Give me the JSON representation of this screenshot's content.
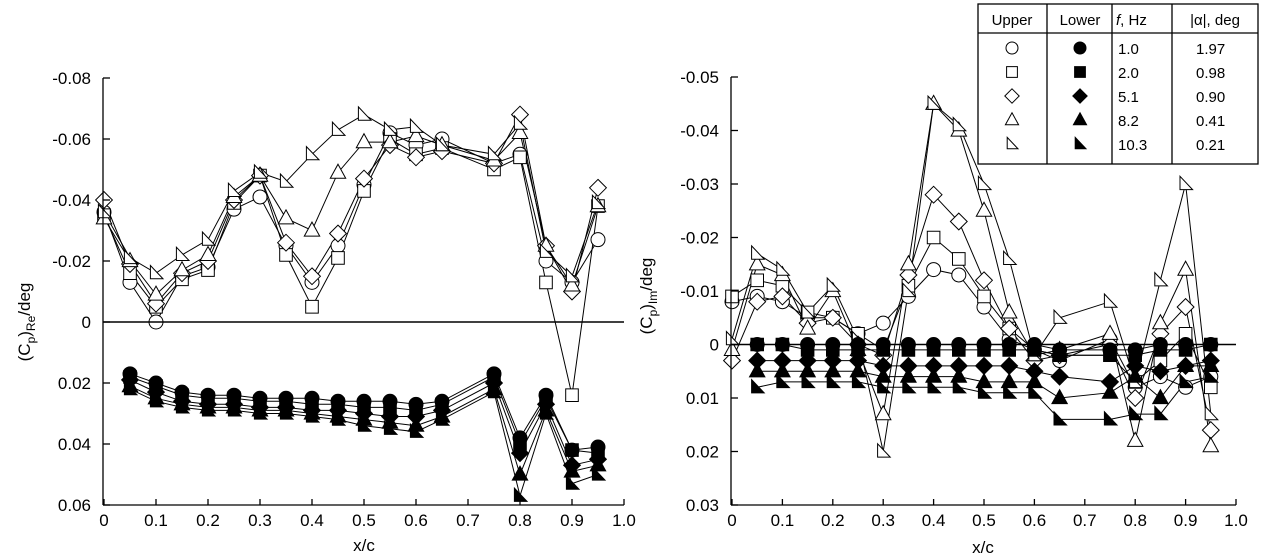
{
  "chart_data": [
    {
      "type": "scatter",
      "xlabel": "x/c",
      "ylabel": "(C",
      "ylabel_sub1": "p",
      "ylabel_mid": ")",
      "ylabel_sub2": "Re",
      "ylabel_tail": "/deg",
      "xlim": [
        0,
        1.0
      ],
      "ylim": [
        0.06,
        -0.08
      ],
      "y_inverted": true,
      "xticks": [
        0,
        0.1,
        0.2,
        0.3,
        0.4,
        0.5,
        0.6,
        0.7,
        0.8,
        0.9,
        1.0
      ],
      "xtick_labels": [
        "0",
        "0.1",
        "0.2",
        "0.3",
        "0.4",
        "0.5",
        "0.6",
        "0.7",
        "0.8",
        "0.9",
        "1.0"
      ],
      "yticks": [
        -0.08,
        -0.06,
        -0.04,
        -0.02,
        0,
        0.02,
        0.04,
        0.06
      ],
      "ytick_labels": [
        "-0.08",
        "-0.06",
        "-0.04",
        "-0.02",
        "0",
        "0.02",
        "0.04",
        "0.06"
      ],
      "zero_line": true,
      "series": [
        {
          "surface": "upper",
          "marker": "circle",
          "x": [
            0,
            0.05,
            0.1,
            0.15,
            0.2,
            0.25,
            0.3,
            0.35,
            0.4,
            0.45,
            0.5,
            0.55,
            0.6,
            0.65,
            0.75,
            0.8,
            0.85,
            0.9,
            0.95
          ],
          "y": [
            -0.036,
            -0.013,
            0.0,
            -0.015,
            -0.018,
            -0.037,
            -0.041,
            -0.025,
            -0.013,
            -0.025,
            -0.045,
            -0.062,
            -0.058,
            -0.06,
            -0.052,
            -0.055,
            -0.02,
            -0.013,
            -0.027
          ]
        },
        {
          "surface": "upper",
          "marker": "square",
          "x": [
            0,
            0.05,
            0.1,
            0.15,
            0.2,
            0.25,
            0.3,
            0.35,
            0.4,
            0.45,
            0.5,
            0.55,
            0.6,
            0.65,
            0.75,
            0.8,
            0.85,
            0.9,
            0.95
          ],
          "y": [
            -0.035,
            -0.016,
            -0.005,
            -0.014,
            -0.017,
            -0.039,
            -0.048,
            -0.022,
            -0.005,
            -0.021,
            -0.043,
            -0.06,
            -0.055,
            -0.057,
            -0.05,
            -0.054,
            -0.013,
            0.024,
            -0.038
          ]
        },
        {
          "surface": "upper",
          "marker": "diamond",
          "x": [
            0,
            0.05,
            0.1,
            0.15,
            0.2,
            0.25,
            0.3,
            0.35,
            0.4,
            0.45,
            0.5,
            0.55,
            0.6,
            0.65,
            0.75,
            0.8,
            0.85,
            0.9,
            0.95
          ],
          "y": [
            -0.04,
            -0.019,
            -0.006,
            -0.016,
            -0.02,
            -0.04,
            -0.048,
            -0.026,
            -0.015,
            -0.029,
            -0.047,
            -0.058,
            -0.054,
            -0.056,
            -0.052,
            -0.068,
            -0.025,
            -0.01,
            -0.044
          ]
        },
        {
          "surface": "upper",
          "marker": "triangle-up",
          "x": [
            0,
            0.05,
            0.1,
            0.15,
            0.2,
            0.25,
            0.3,
            0.35,
            0.4,
            0.45,
            0.5,
            0.55,
            0.6,
            0.65,
            0.75,
            0.8,
            0.85,
            0.9,
            0.95
          ],
          "y": [
            -0.034,
            -0.02,
            -0.009,
            -0.017,
            -0.022,
            -0.041,
            -0.048,
            -0.034,
            -0.03,
            -0.049,
            -0.059,
            -0.059,
            -0.061,
            -0.058,
            -0.053,
            -0.062,
            -0.025,
            -0.012,
            -0.038
          ]
        },
        {
          "surface": "upper",
          "marker": "triangle-right",
          "x": [
            0,
            0.05,
            0.1,
            0.15,
            0.2,
            0.25,
            0.3,
            0.35,
            0.4,
            0.45,
            0.5,
            0.55,
            0.6,
            0.65,
            0.75,
            0.8,
            0.85,
            0.9,
            0.95
          ],
          "y": [
            -0.036,
            -0.021,
            -0.016,
            -0.022,
            -0.027,
            -0.043,
            -0.049,
            -0.046,
            -0.055,
            -0.063,
            -0.068,
            -0.063,
            -0.064,
            -0.058,
            -0.055,
            -0.065,
            -0.023,
            -0.015,
            -0.039
          ]
        },
        {
          "surface": "lower",
          "marker": "circle",
          "x": [
            0.05,
            0.1,
            0.15,
            0.2,
            0.25,
            0.3,
            0.35,
            0.4,
            0.45,
            0.5,
            0.55,
            0.6,
            0.65,
            0.75,
            0.8,
            0.85,
            0.9,
            0.95
          ],
          "y": [
            0.017,
            0.02,
            0.023,
            0.024,
            0.024,
            0.025,
            0.025,
            0.025,
            0.026,
            0.026,
            0.026,
            0.027,
            0.026,
            0.017,
            0.038,
            0.024,
            0.042,
            0.041
          ]
        },
        {
          "surface": "lower",
          "marker": "square",
          "x": [
            0.05,
            0.1,
            0.15,
            0.2,
            0.25,
            0.3,
            0.35,
            0.4,
            0.45,
            0.5,
            0.55,
            0.6,
            0.65,
            0.75,
            0.8,
            0.85,
            0.9,
            0.95
          ],
          "y": [
            0.018,
            0.021,
            0.024,
            0.025,
            0.025,
            0.026,
            0.026,
            0.027,
            0.027,
            0.028,
            0.028,
            0.029,
            0.027,
            0.018,
            0.04,
            0.025,
            0.042,
            0.043
          ]
        },
        {
          "surface": "lower",
          "marker": "diamond",
          "x": [
            0.05,
            0.1,
            0.15,
            0.2,
            0.25,
            0.3,
            0.35,
            0.4,
            0.45,
            0.5,
            0.55,
            0.6,
            0.65,
            0.75,
            0.8,
            0.85,
            0.9,
            0.95
          ],
          "y": [
            0.019,
            0.023,
            0.026,
            0.027,
            0.027,
            0.028,
            0.028,
            0.029,
            0.029,
            0.03,
            0.031,
            0.031,
            0.029,
            0.02,
            0.043,
            0.027,
            0.047,
            0.045
          ]
        },
        {
          "surface": "lower",
          "marker": "triangle-up",
          "x": [
            0.05,
            0.1,
            0.15,
            0.2,
            0.25,
            0.3,
            0.35,
            0.4,
            0.45,
            0.5,
            0.55,
            0.6,
            0.65,
            0.75,
            0.8,
            0.85,
            0.9,
            0.95
          ],
          "y": [
            0.021,
            0.025,
            0.027,
            0.028,
            0.028,
            0.029,
            0.029,
            0.03,
            0.031,
            0.032,
            0.033,
            0.034,
            0.031,
            0.022,
            0.05,
            0.029,
            0.049,
            0.047
          ]
        },
        {
          "surface": "lower",
          "marker": "triangle-right",
          "x": [
            0.05,
            0.1,
            0.15,
            0.2,
            0.25,
            0.3,
            0.35,
            0.4,
            0.45,
            0.5,
            0.55,
            0.6,
            0.65,
            0.75,
            0.8,
            0.85,
            0.9,
            0.95
          ],
          "y": [
            0.022,
            0.026,
            0.028,
            0.029,
            0.029,
            0.03,
            0.03,
            0.031,
            0.032,
            0.034,
            0.035,
            0.036,
            0.032,
            0.023,
            0.057,
            0.03,
            0.053,
            0.05
          ]
        }
      ]
    },
    {
      "type": "scatter",
      "xlabel": "x/c",
      "ylabel": "(C",
      "ylabel_sub1": "p",
      "ylabel_mid": ")",
      "ylabel_sub2": "Im",
      "ylabel_tail": "/deg",
      "xlim": [
        0,
        1.0
      ],
      "ylim": [
        0.03,
        -0.05
      ],
      "y_inverted": true,
      "xticks": [
        0,
        0.1,
        0.2,
        0.3,
        0.4,
        0.5,
        0.6,
        0.7,
        0.8,
        0.9,
        1.0
      ],
      "xtick_labels": [
        "0",
        "0.1",
        "0.2",
        "0.3",
        "0.4",
        "0.5",
        "0.6",
        "0.7",
        "0.8",
        "0.9",
        "1.0"
      ],
      "yticks": [
        -0.05,
        -0.04,
        -0.03,
        -0.02,
        -0.01,
        0,
        0.01,
        0.02,
        0.03
      ],
      "ytick_labels": [
        "-0.05",
        "-0.04",
        "-0.03",
        "-0.02",
        "-0.01",
        "0",
        "0.01",
        "0.02",
        "0.03"
      ],
      "zero_line": true,
      "series": [
        {
          "surface": "upper",
          "marker": "circle",
          "x": [
            0,
            0.05,
            0.1,
            0.15,
            0.2,
            0.25,
            0.3,
            0.35,
            0.4,
            0.45,
            0.5,
            0.55,
            0.6,
            0.65,
            0.75,
            0.8,
            0.85,
            0.9,
            0.95
          ],
          "y": [
            -0.008,
            -0.009,
            -0.008,
            -0.005,
            -0.005,
            -0.002,
            -0.004,
            -0.009,
            -0.014,
            -0.013,
            -0.007,
            -0.001,
            0.001,
            0.003,
            -0.001,
            0.008,
            0.006,
            0.008,
            0.006
          ]
        },
        {
          "surface": "upper",
          "marker": "square",
          "x": [
            0,
            0.05,
            0.1,
            0.15,
            0.2,
            0.25,
            0.3,
            0.35,
            0.4,
            0.45,
            0.5,
            0.55,
            0.6,
            0.65,
            0.75,
            0.8,
            0.85,
            0.9,
            0.95
          ],
          "y": [
            -0.009,
            -0.012,
            -0.011,
            -0.006,
            -0.005,
            -0.002,
            0.001,
            -0.011,
            -0.02,
            -0.016,
            -0.009,
            -0.003,
            0.001,
            0.002,
            0.002,
            0.007,
            0.003,
            -0.002,
            0.008
          ]
        },
        {
          "surface": "upper",
          "marker": "diamond",
          "x": [
            0,
            0.05,
            0.1,
            0.15,
            0.2,
            0.25,
            0.3,
            0.35,
            0.4,
            0.45,
            0.5,
            0.55,
            0.6,
            0.65,
            0.75,
            0.8,
            0.85,
            0.9,
            0.95
          ],
          "y": [
            0.003,
            -0.008,
            -0.009,
            -0.004,
            -0.005,
            0.0,
            0.002,
            -0.013,
            -0.028,
            -0.023,
            -0.012,
            -0.003,
            0.003,
            0.002,
            0.0,
            0.01,
            -0.002,
            -0.007,
            0.016
          ]
        },
        {
          "surface": "upper",
          "marker": "triangle-up",
          "x": [
            0,
            0.05,
            0.1,
            0.15,
            0.2,
            0.25,
            0.3,
            0.35,
            0.4,
            0.45,
            0.5,
            0.55,
            0.6,
            0.65,
            0.75,
            0.8,
            0.85,
            0.9,
            0.95
          ],
          "y": [
            0.001,
            -0.015,
            -0.013,
            -0.003,
            -0.01,
            0.001,
            0.013,
            -0.015,
            -0.045,
            -0.04,
            -0.025,
            -0.006,
            0.002,
            0.001,
            -0.002,
            0.018,
            -0.004,
            -0.014,
            0.019
          ]
        },
        {
          "surface": "upper",
          "marker": "triangle-right",
          "x": [
            0,
            0.05,
            0.1,
            0.15,
            0.2,
            0.25,
            0.3,
            0.35,
            0.4,
            0.45,
            0.5,
            0.55,
            0.6,
            0.65,
            0.75,
            0.8,
            0.85,
            0.9,
            0.95
          ],
          "y": [
            -0.001,
            -0.017,
            -0.014,
            -0.006,
            -0.011,
            -0.001,
            0.02,
            -0.01,
            -0.045,
            -0.041,
            -0.03,
            -0.016,
            0.002,
            -0.005,
            -0.008,
            0.007,
            -0.012,
            -0.03,
            0.013
          ]
        },
        {
          "surface": "lower",
          "marker": "circle",
          "x": [
            0.05,
            0.1,
            0.15,
            0.2,
            0.25,
            0.3,
            0.35,
            0.4,
            0.45,
            0.5,
            0.55,
            0.6,
            0.65,
            0.75,
            0.8,
            0.85,
            0.9,
            0.95
          ],
          "y": [
            0.0,
            0.0,
            0.0,
            0.0,
            0.0,
            0.0,
            0.0,
            0.0,
            0.0,
            0.0,
            0.0,
            0.0,
            0.001,
            0.001,
            0.001,
            0.0,
            0.0,
            0.0
          ]
        },
        {
          "surface": "lower",
          "marker": "square",
          "x": [
            0.05,
            0.1,
            0.15,
            0.2,
            0.25,
            0.3,
            0.35,
            0.4,
            0.45,
            0.5,
            0.55,
            0.6,
            0.65,
            0.75,
            0.8,
            0.85,
            0.9,
            0.95
          ],
          "y": [
            0.0,
            0.0,
            0.001,
            0.001,
            0.001,
            0.001,
            0.001,
            0.001,
            0.001,
            0.001,
            0.001,
            0.001,
            0.002,
            0.002,
            0.002,
            0.001,
            0.001,
            0.0
          ]
        },
        {
          "surface": "lower",
          "marker": "diamond",
          "x": [
            0.05,
            0.1,
            0.15,
            0.2,
            0.25,
            0.3,
            0.35,
            0.4,
            0.45,
            0.5,
            0.55,
            0.6,
            0.65,
            0.75,
            0.8,
            0.85,
            0.9,
            0.95
          ],
          "y": [
            0.003,
            0.003,
            0.003,
            0.003,
            0.003,
            0.004,
            0.004,
            0.004,
            0.004,
            0.004,
            0.004,
            0.005,
            0.006,
            0.007,
            0.004,
            0.005,
            0.004,
            0.003
          ]
        },
        {
          "surface": "lower",
          "marker": "triangle-up",
          "x": [
            0.05,
            0.1,
            0.15,
            0.2,
            0.25,
            0.3,
            0.35,
            0.4,
            0.45,
            0.5,
            0.55,
            0.6,
            0.65,
            0.75,
            0.8,
            0.85,
            0.9,
            0.95
          ],
          "y": [
            0.005,
            0.005,
            0.005,
            0.005,
            0.005,
            0.006,
            0.006,
            0.006,
            0.006,
            0.007,
            0.007,
            0.007,
            0.01,
            0.009,
            0.006,
            0.01,
            0.004,
            0.004
          ]
        },
        {
          "surface": "lower",
          "marker": "triangle-right",
          "x": [
            0.05,
            0.1,
            0.15,
            0.2,
            0.25,
            0.3,
            0.35,
            0.4,
            0.45,
            0.5,
            0.55,
            0.6,
            0.65,
            0.75,
            0.8,
            0.85,
            0.9,
            0.95
          ],
          "y": [
            0.008,
            0.007,
            0.007,
            0.007,
            0.007,
            0.008,
            0.008,
            0.008,
            0.008,
            0.009,
            0.009,
            0.009,
            0.014,
            0.014,
            0.013,
            0.013,
            0.007,
            0.006
          ]
        }
      ]
    }
  ],
  "legend": {
    "headers": {
      "upper": "Upper",
      "lower": "Lower",
      "f_italic": "f",
      "f_rest": ", Hz",
      "alpha": "|α|, deg"
    },
    "rows": [
      {
        "marker": "circle",
        "f": "1.0",
        "alpha": "1.97"
      },
      {
        "marker": "square",
        "f": "2.0",
        "alpha": "0.98"
      },
      {
        "marker": "diamond",
        "f": "5.1",
        "alpha": "0.90"
      },
      {
        "marker": "triangle-up",
        "f": "8.2",
        "alpha": "0.41"
      },
      {
        "marker": "triangle-right",
        "f": "10.3",
        "alpha": "0.21"
      }
    ]
  }
}
